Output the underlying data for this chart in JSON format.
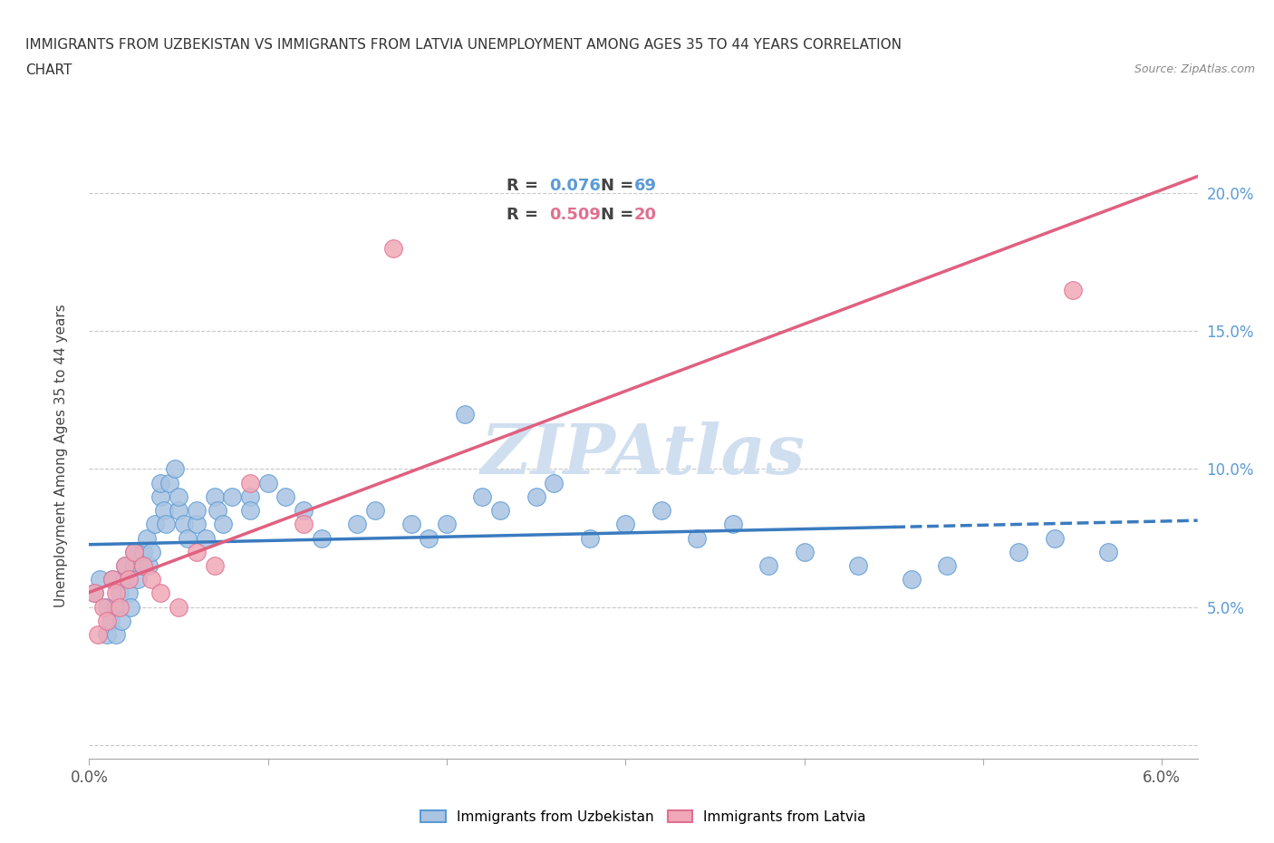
{
  "title_line1": "IMMIGRANTS FROM UZBEKISTAN VS IMMIGRANTS FROM LATVIA UNEMPLOYMENT AMONG AGES 35 TO 44 YEARS CORRELATION",
  "title_line2": "CHART",
  "source_text": "Source: ZipAtlas.com",
  "ylabel": "Unemployment Among Ages 35 to 44 years",
  "xlim": [
    0.0,
    0.062
  ],
  "ylim": [
    -0.005,
    0.215
  ],
  "x_ticks": [
    0.0,
    0.01,
    0.02,
    0.03,
    0.04,
    0.05,
    0.06
  ],
  "y_ticks": [
    0.0,
    0.05,
    0.1,
    0.15,
    0.2
  ],
  "uzbekistan_color": "#aac4e2",
  "latvia_color": "#f0a8b8",
  "uzbekistan_edge_color": "#5b9bd5",
  "latvia_edge_color": "#e07090",
  "uzbekistan_R": 0.076,
  "uzbekistan_N": 69,
  "latvia_R": 0.509,
  "latvia_N": 20,
  "uzbekistan_x": [
    0.0003,
    0.0006,
    0.001,
    0.001,
    0.0012,
    0.0013,
    0.0015,
    0.0015,
    0.0017,
    0.0018,
    0.002,
    0.002,
    0.0022,
    0.0023,
    0.0025,
    0.0025,
    0.0027,
    0.003,
    0.003,
    0.0032,
    0.0033,
    0.0035,
    0.0037,
    0.004,
    0.004,
    0.0042,
    0.0043,
    0.0045,
    0.0048,
    0.005,
    0.005,
    0.0053,
    0.0055,
    0.006,
    0.006,
    0.0065,
    0.007,
    0.0072,
    0.0075,
    0.008,
    0.009,
    0.009,
    0.01,
    0.011,
    0.012,
    0.013,
    0.015,
    0.016,
    0.018,
    0.019,
    0.02,
    0.021,
    0.022,
    0.023,
    0.025,
    0.026,
    0.028,
    0.03,
    0.032,
    0.034,
    0.036,
    0.038,
    0.04,
    0.043,
    0.046,
    0.048,
    0.052,
    0.054,
    0.057
  ],
  "uzbekistan_y": [
    0.055,
    0.06,
    0.04,
    0.05,
    0.045,
    0.06,
    0.04,
    0.05,
    0.055,
    0.045,
    0.06,
    0.065,
    0.055,
    0.05,
    0.065,
    0.07,
    0.06,
    0.07,
    0.065,
    0.075,
    0.065,
    0.07,
    0.08,
    0.09,
    0.095,
    0.085,
    0.08,
    0.095,
    0.1,
    0.085,
    0.09,
    0.08,
    0.075,
    0.08,
    0.085,
    0.075,
    0.09,
    0.085,
    0.08,
    0.09,
    0.09,
    0.085,
    0.095,
    0.09,
    0.085,
    0.075,
    0.08,
    0.085,
    0.08,
    0.075,
    0.08,
    0.12,
    0.09,
    0.085,
    0.09,
    0.095,
    0.075,
    0.08,
    0.085,
    0.075,
    0.08,
    0.065,
    0.07,
    0.065,
    0.06,
    0.065,
    0.07,
    0.075,
    0.07
  ],
  "latvia_x": [
    0.0003,
    0.0005,
    0.0008,
    0.001,
    0.0013,
    0.0015,
    0.0017,
    0.002,
    0.0022,
    0.0025,
    0.003,
    0.0035,
    0.004,
    0.005,
    0.006,
    0.007,
    0.009,
    0.012,
    0.017,
    0.055
  ],
  "latvia_y": [
    0.055,
    0.04,
    0.05,
    0.045,
    0.06,
    0.055,
    0.05,
    0.065,
    0.06,
    0.07,
    0.065,
    0.06,
    0.055,
    0.05,
    0.07,
    0.065,
    0.095,
    0.08,
    0.18,
    0.165
  ],
  "grid_color": "#c8c8c8",
  "background_color": "#ffffff",
  "watermark_color": "#d0dff0",
  "line_blue_color": "#3a7bbf",
  "line_pink_color": "#e06080"
}
